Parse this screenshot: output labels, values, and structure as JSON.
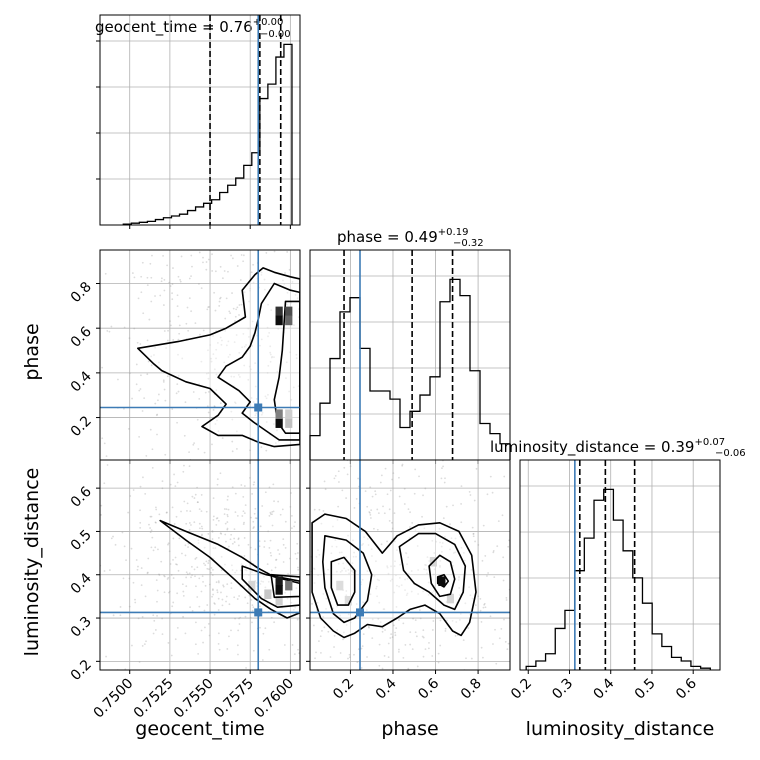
{
  "parameters": [
    {
      "name": "geocent_time",
      "title": "geocent_time = 0.76",
      "sup": "+0.00",
      "sub": "−0.00"
    },
    {
      "name": "phase",
      "title": "phase = 0.49",
      "sup": "+0.19",
      "sub": "−0.32"
    },
    {
      "name": "luminosity_distance",
      "title": "luminosity_distance = 0.39",
      "sup": "+0.07",
      "sub": "−0.06"
    }
  ],
  "colors": {
    "truth": "#3d7bb5",
    "grid": "#b0b0b0",
    "hist": "#000000",
    "scatter": "#9a9a9a"
  },
  "chart_data": {
    "type": "corner",
    "params": [
      "geocent_time",
      "phase",
      "luminosity_distance"
    ],
    "truths": {
      "geocent_time": 0.758,
      "phase": 0.245,
      "luminosity_distance": 0.313
    },
    "ranges": {
      "geocent_time": [
        0.74815,
        0.7606
      ],
      "phase": [
        0.01,
        0.95
      ],
      "luminosity_distance": [
        0.18,
        0.665
      ]
    },
    "ticks": {
      "geocent_time": {
        "values": [
          0.75,
          0.7525,
          0.755,
          0.7575,
          0.76
        ],
        "labels": [
          "0.7500",
          "0.7525",
          "0.7550",
          "0.7575",
          "0.7600"
        ]
      },
      "phase": {
        "values": [
          0.2,
          0.4,
          0.6,
          0.8
        ],
        "labels": [
          "0.2",
          "0.4",
          "0.6",
          "0.8"
        ]
      },
      "luminosity_distance": {
        "values": [
          0.2,
          0.3,
          0.4,
          0.5,
          0.6
        ],
        "labels": [
          "0.2",
          "0.3",
          "0.4",
          "0.5",
          "0.6"
        ]
      }
    },
    "quantiles": {
      "geocent_time": [
        0.755,
        0.7581,
        0.7594
      ],
      "phase": [
        0.17,
        0.49,
        0.68
      ],
      "luminosity_distance": [
        0.325,
        0.387,
        0.458
      ]
    },
    "histograms": {
      "geocent_time": {
        "bin_edges": [
          0.7496,
          0.7501,
          0.7506,
          0.7511,
          0.7516,
          0.7521,
          0.7526,
          0.7531,
          0.7536,
          0.7541,
          0.7546,
          0.7551,
          0.7556,
          0.7561,
          0.7566,
          0.7571,
          0.7576,
          0.7581,
          0.7586,
          0.7591,
          0.7596,
          0.7601
        ],
        "counts": [
          0.5,
          1,
          1.5,
          2,
          3,
          4,
          5,
          6,
          8,
          10,
          12,
          14,
          18,
          22,
          26,
          33,
          40,
          70,
          78,
          93,
          100
        ]
      },
      "phase": {
        "bin_edges": [
          0.01,
          0.057,
          0.104,
          0.151,
          0.198,
          0.245,
          0.292,
          0.339,
          0.386,
          0.433,
          0.48,
          0.527,
          0.574,
          0.621,
          0.668,
          0.715,
          0.762,
          0.809,
          0.856,
          0.903,
          0.95
        ],
        "counts": [
          12,
          28,
          50,
          73,
          80,
          55,
          34,
          34,
          30,
          16,
          24,
          32,
          41,
          78,
          89,
          81,
          44,
          18,
          13,
          8
        ]
      },
      "luminosity_distance": {
        "bin_edges": [
          0.195,
          0.2185,
          0.242,
          0.2655,
          0.289,
          0.3125,
          0.336,
          0.3595,
          0.383,
          0.4065,
          0.43,
          0.4535,
          0.477,
          0.5005,
          0.524,
          0.5475,
          0.571,
          0.5945,
          0.618,
          0.6415
        ],
        "counts": [
          2,
          5,
          9,
          23,
          33,
          55,
          73,
          94,
          100,
          83,
          66,
          51,
          37,
          20,
          13,
          7,
          5,
          2,
          1
        ]
      }
    },
    "joint": [
      {
        "x": "geocent_time",
        "y": "phase",
        "contours": [
          [
            [
              0.7583,
              0.87
            ],
            [
              0.759,
              0.85
            ],
            [
              0.76,
              0.83
            ],
            [
              0.7606,
              0.82
            ],
            [
              0.7606,
              0.08
            ],
            [
              0.759,
              0.07
            ],
            [
              0.758,
              0.09
            ],
            [
              0.757,
              0.12
            ],
            [
              0.7555,
              0.12
            ],
            [
              0.7545,
              0.16
            ],
            [
              0.7555,
              0.21
            ],
            [
              0.756,
              0.26
            ],
            [
              0.755,
              0.33
            ],
            [
              0.7535,
              0.36
            ],
            [
              0.752,
              0.41
            ],
            [
              0.7515,
              0.44
            ],
            [
              0.7505,
              0.51
            ],
            [
              0.753,
              0.54
            ],
            [
              0.755,
              0.57
            ],
            [
              0.756,
              0.6
            ],
            [
              0.7572,
              0.65
            ],
            [
              0.757,
              0.77
            ],
            [
              0.7578,
              0.84
            ],
            [
              0.7583,
              0.87
            ]
          ],
          [
            [
              0.759,
              0.8
            ],
            [
              0.76,
              0.77
            ],
            [
              0.7606,
              0.76
            ],
            [
              0.7606,
              0.1
            ],
            [
              0.7593,
              0.1
            ],
            [
              0.7585,
              0.14
            ],
            [
              0.7577,
              0.18
            ],
            [
              0.757,
              0.22
            ],
            [
              0.7575,
              0.27
            ],
            [
              0.7568,
              0.32
            ],
            [
              0.7555,
              0.38
            ],
            [
              0.756,
              0.43
            ],
            [
              0.757,
              0.47
            ],
            [
              0.7575,
              0.52
            ],
            [
              0.7578,
              0.58
            ],
            [
              0.758,
              0.64
            ],
            [
              0.7582,
              0.71
            ],
            [
              0.759,
              0.8
            ]
          ],
          [
            [
              0.7597,
              0.72
            ],
            [
              0.7606,
              0.72
            ],
            [
              0.7606,
              0.13
            ],
            [
              0.7597,
              0.13
            ],
            [
              0.7592,
              0.18
            ],
            [
              0.759,
              0.28
            ],
            [
              0.7593,
              0.38
            ],
            [
              0.7595,
              0.5
            ],
            [
              0.7597,
              0.72
            ]
          ]
        ],
        "density": [
          {
            "x": 0.7593,
            "y": 0.675,
            "level": 0.8
          },
          {
            "x": 0.7599,
            "y": 0.675,
            "level": 0.7
          },
          {
            "x": 0.7593,
            "y": 0.635,
            "level": 0.95
          },
          {
            "x": 0.7599,
            "y": 0.635,
            "level": 0.6
          },
          {
            "x": 0.7593,
            "y": 0.175,
            "level": 0.95
          },
          {
            "x": 0.7599,
            "y": 0.175,
            "level": 0.45
          },
          {
            "x": 0.7593,
            "y": 0.215,
            "level": 0.5
          },
          {
            "x": 0.7599,
            "y": 0.215,
            "level": 0.35
          }
        ]
      },
      {
        "x": "geocent_time",
        "y": "luminosity_distance",
        "contours": [
          [
            [
              0.7519,
              0.525
            ],
            [
              0.7535,
              0.5
            ],
            [
              0.7555,
              0.47
            ],
            [
              0.757,
              0.44
            ],
            [
              0.758,
              0.415
            ],
            [
              0.759,
              0.395
            ],
            [
              0.7606,
              0.38
            ],
            [
              0.7606,
              0.312
            ],
            [
              0.7598,
              0.3
            ],
            [
              0.7588,
              0.32
            ],
            [
              0.7578,
              0.345
            ],
            [
              0.7565,
              0.39
            ],
            [
              0.755,
              0.44
            ],
            [
              0.7535,
              0.48
            ],
            [
              0.7519,
              0.525
            ]
          ],
          [
            [
              0.757,
              0.42
            ],
            [
              0.7585,
              0.4
            ],
            [
              0.7606,
              0.385
            ],
            [
              0.7606,
              0.33
            ],
            [
              0.7592,
              0.325
            ],
            [
              0.7582,
              0.345
            ],
            [
              0.757,
              0.39
            ],
            [
              0.757,
              0.42
            ]
          ],
          [
            [
              0.7588,
              0.4
            ],
            [
              0.7606,
              0.395
            ],
            [
              0.7606,
              0.35
            ],
            [
              0.759,
              0.348
            ],
            [
              0.7588,
              0.4
            ]
          ]
        ],
        "density": [
          {
            "x": 0.7593,
            "y": 0.385,
            "level": 0.9
          },
          {
            "x": 0.7593,
            "y": 0.365,
            "level": 0.95
          },
          {
            "x": 0.7599,
            "y": 0.375,
            "level": 0.55
          },
          {
            "x": 0.7586,
            "y": 0.355,
            "level": 0.4
          },
          {
            "x": 0.7576,
            "y": 0.375,
            "level": 0.3
          },
          {
            "x": 0.7593,
            "y": 0.34,
            "level": 0.35
          }
        ]
      },
      {
        "x": "phase",
        "y": "luminosity_distance",
        "contours": [
          [
            [
              0.02,
              0.52
            ],
            [
              0.08,
              0.54
            ],
            [
              0.18,
              0.53
            ],
            [
              0.27,
              0.5
            ],
            [
              0.35,
              0.45
            ],
            [
              0.42,
              0.49
            ],
            [
              0.52,
              0.515
            ],
            [
              0.62,
              0.52
            ],
            [
              0.71,
              0.5
            ],
            [
              0.77,
              0.445
            ],
            [
              0.79,
              0.36
            ],
            [
              0.76,
              0.29
            ],
            [
              0.72,
              0.26
            ],
            [
              0.68,
              0.27
            ],
            [
              0.62,
              0.31
            ],
            [
              0.55,
              0.33
            ],
            [
              0.48,
              0.32
            ],
            [
              0.42,
              0.3
            ],
            [
              0.35,
              0.28
            ],
            [
              0.28,
              0.285
            ],
            [
              0.22,
              0.265
            ],
            [
              0.17,
              0.255
            ],
            [
              0.12,
              0.27
            ],
            [
              0.06,
              0.3
            ],
            [
              0.02,
              0.36
            ],
            [
              0.02,
              0.52
            ]
          ],
          [
            [
              0.08,
              0.49
            ],
            [
              0.18,
              0.48
            ],
            [
              0.26,
              0.45
            ],
            [
              0.3,
              0.4
            ],
            [
              0.28,
              0.34
            ],
            [
              0.22,
              0.3
            ],
            [
              0.17,
              0.29
            ],
            [
              0.12,
              0.31
            ],
            [
              0.08,
              0.37
            ],
            [
              0.07,
              0.43
            ],
            [
              0.08,
              0.49
            ]
          ],
          [
            [
              0.43,
              0.465
            ],
            [
              0.52,
              0.495
            ],
            [
              0.6,
              0.495
            ],
            [
              0.69,
              0.47
            ],
            [
              0.74,
              0.42
            ],
            [
              0.73,
              0.36
            ],
            [
              0.69,
              0.32
            ],
            [
              0.64,
              0.33
            ],
            [
              0.57,
              0.36
            ],
            [
              0.5,
              0.38
            ],
            [
              0.45,
              0.41
            ],
            [
              0.43,
              0.465
            ]
          ],
          [
            [
              0.11,
              0.43
            ],
            [
              0.17,
              0.44
            ],
            [
              0.22,
              0.41
            ],
            [
              0.22,
              0.36
            ],
            [
              0.19,
              0.33
            ],
            [
              0.14,
              0.33
            ],
            [
              0.11,
              0.37
            ],
            [
              0.11,
              0.43
            ]
          ],
          [
            [
              0.57,
              0.42
            ],
            [
              0.62,
              0.445
            ],
            [
              0.67,
              0.43
            ],
            [
              0.69,
              0.39
            ],
            [
              0.67,
              0.355
            ],
            [
              0.62,
              0.35
            ],
            [
              0.58,
              0.38
            ],
            [
              0.57,
              0.42
            ]
          ],
          [
            [
              0.61,
              0.395
            ],
            [
              0.64,
              0.4
            ],
            [
              0.66,
              0.385
            ],
            [
              0.64,
              0.372
            ],
            [
              0.61,
              0.38
            ],
            [
              0.61,
              0.395
            ]
          ]
        ],
        "density": [
          {
            "x": 0.15,
            "y": 0.375,
            "level": 0.25
          },
          {
            "x": 0.19,
            "y": 0.34,
            "level": 0.25
          },
          {
            "x": 0.59,
            "y": 0.43,
            "level": 0.3
          },
          {
            "x": 0.67,
            "y": 0.345,
            "level": 0.3
          },
          {
            "x": 0.63,
            "y": 0.385,
            "level": 0.95
          }
        ]
      }
    ]
  }
}
